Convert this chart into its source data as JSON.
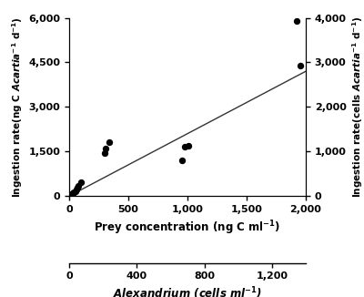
{
  "scatter_x": [
    10,
    15,
    20,
    30,
    40,
    50,
    60,
    70,
    80,
    100,
    300,
    310,
    340,
    950,
    980,
    1010,
    1920,
    1950
  ],
  "scatter_y": [
    30,
    50,
    70,
    100,
    130,
    170,
    220,
    280,
    350,
    450,
    1450,
    1600,
    1800,
    1200,
    1650,
    1680,
    5900,
    4400
  ],
  "line_x": [
    0,
    2000
  ],
  "line_y": [
    0,
    4200
  ],
  "xlim": [
    0,
    2000
  ],
  "ylim": [
    0,
    6000
  ],
  "ylim2": [
    0,
    4000
  ],
  "xlim2": [
    0,
    1400
  ],
  "yticks": [
    0,
    1500,
    3000,
    4500,
    6000
  ],
  "yticks2": [
    0,
    1000,
    2000,
    3000,
    4000
  ],
  "xticks": [
    0,
    500,
    1000,
    1500,
    2000
  ],
  "xticks2": [
    0,
    400,
    800,
    1200
  ],
  "xlabel": "Prey concentration (ng C ml$^{-1}$)",
  "xlabel2": "$Alexandrium$ (cells ml$^{-1}$)",
  "ylabel": "Ingestion rate(ng C $Acartia$$^{-1}$ d$^{-1}$)",
  "ylabel2": "Ingestion rate(cells $Acartia$$^{-1}$ d$^{-1}$)",
  "dot_color": "#000000",
  "line_color": "#333333",
  "bg_color": "#ffffff"
}
